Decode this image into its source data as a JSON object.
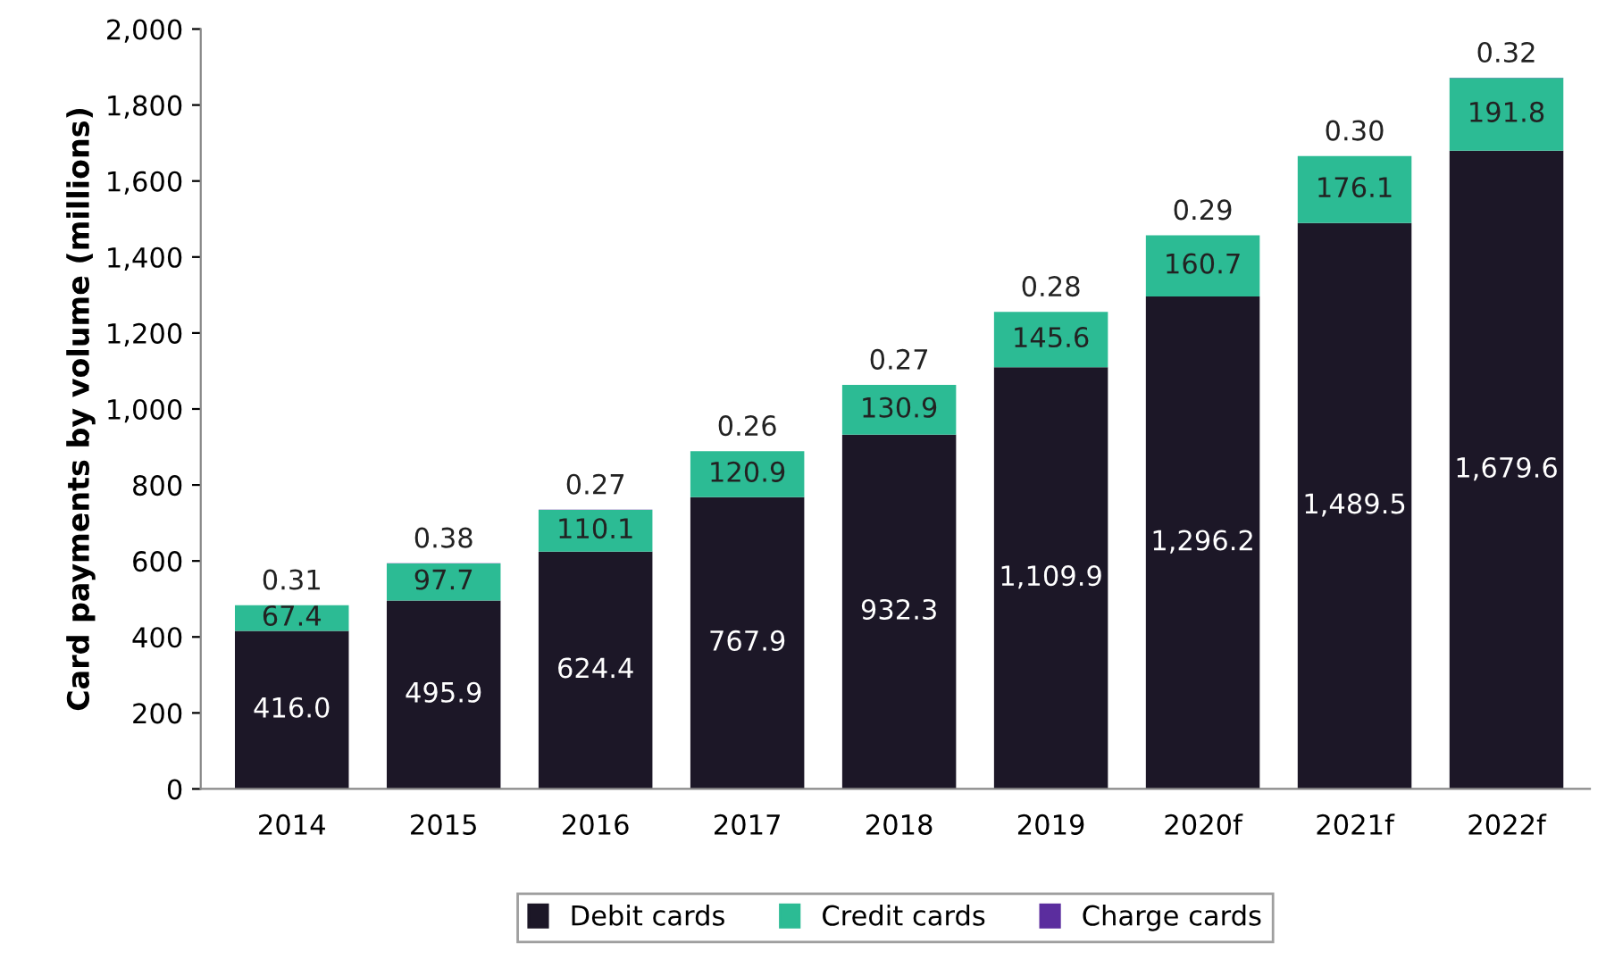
{
  "chart_data": {
    "type": "bar",
    "stacked": true,
    "ylabel": "Card payments by volume (millions)",
    "categories": [
      "2014",
      "2015",
      "2016",
      "2017",
      "2018",
      "2019",
      "2020f",
      "2021f",
      "2022f"
    ],
    "series": [
      {
        "name": "Debit cards",
        "color": "#1c1727",
        "values": [
          416.0,
          495.9,
          624.4,
          767.9,
          932.3,
          1109.9,
          1296.2,
          1489.5,
          1679.6
        ],
        "value_labels": [
          "416.0",
          "495.9",
          "624.4",
          "767.9",
          "932.3",
          "1,109.9",
          "1,296.2",
          "1,489.5",
          "1,679.6"
        ]
      },
      {
        "name": "Credit cards",
        "color": "#2cbb94",
        "values": [
          67.4,
          97.7,
          110.1,
          120.9,
          130.9,
          145.6,
          160.7,
          176.1,
          191.8
        ],
        "value_labels": [
          "67.4",
          "97.7",
          "110.1",
          "120.9",
          "130.9",
          "145.6",
          "160.7",
          "176.1",
          "191.8"
        ]
      },
      {
        "name": "Charge cards",
        "color": "#5b2d9e",
        "values": [
          0.31,
          0.38,
          0.27,
          0.26,
          0.27,
          0.28,
          0.29,
          0.3,
          0.32
        ],
        "value_labels": [
          "0.31",
          "0.38",
          "0.27",
          "0.26",
          "0.27",
          "0.28",
          "0.29",
          "0.30",
          "0.32"
        ]
      }
    ],
    "ylim": [
      0,
      2000
    ],
    "yticks": [
      0,
      200,
      400,
      600,
      800,
      {
        "value": 1000,
        "label": "1,000"
      },
      {
        "value": 1200,
        "label": "1,200"
      },
      {
        "value": 1400,
        "label": "1,400"
      },
      {
        "value": 1600,
        "label": "1,600"
      },
      {
        "value": 1800,
        "label": "1,800"
      },
      {
        "value": 2000,
        "label": "2,000"
      }
    ],
    "grid": false,
    "legend": "bottom"
  }
}
